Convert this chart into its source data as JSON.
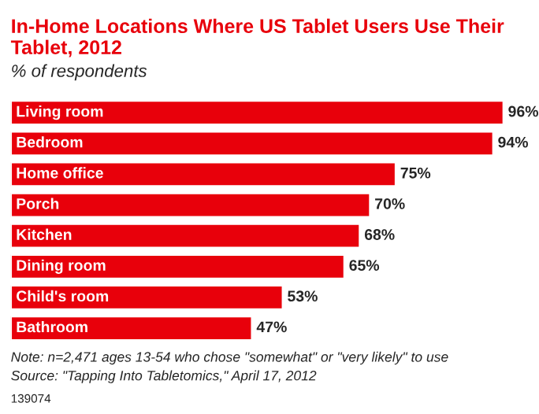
{
  "chart_data": {
    "type": "bar",
    "orientation": "horizontal",
    "title": "In-Home Locations Where US Tablet Users Use Their Tablet, 2012",
    "subtitle": "% of respondents",
    "categories": [
      "Living room",
      "Bedroom",
      "Home office",
      "Porch",
      "Kitchen",
      "Dining room",
      "Child's room",
      "Bathroom"
    ],
    "values": [
      96,
      94,
      75,
      70,
      68,
      65,
      53,
      47
    ],
    "value_labels": [
      "96%",
      "94%",
      "75%",
      "70%",
      "68%",
      "65%",
      "53%",
      "47%"
    ],
    "color": "#e8000b",
    "tick_labels": false,
    "annotations": [
      "Note: n=2,471 ages 13-54 who chose \"somewhat\" or \"very likely\" to use",
      "Source: \"Tapping Into Tabletomics,\" April 17, 2012",
      "139074"
    ]
  }
}
